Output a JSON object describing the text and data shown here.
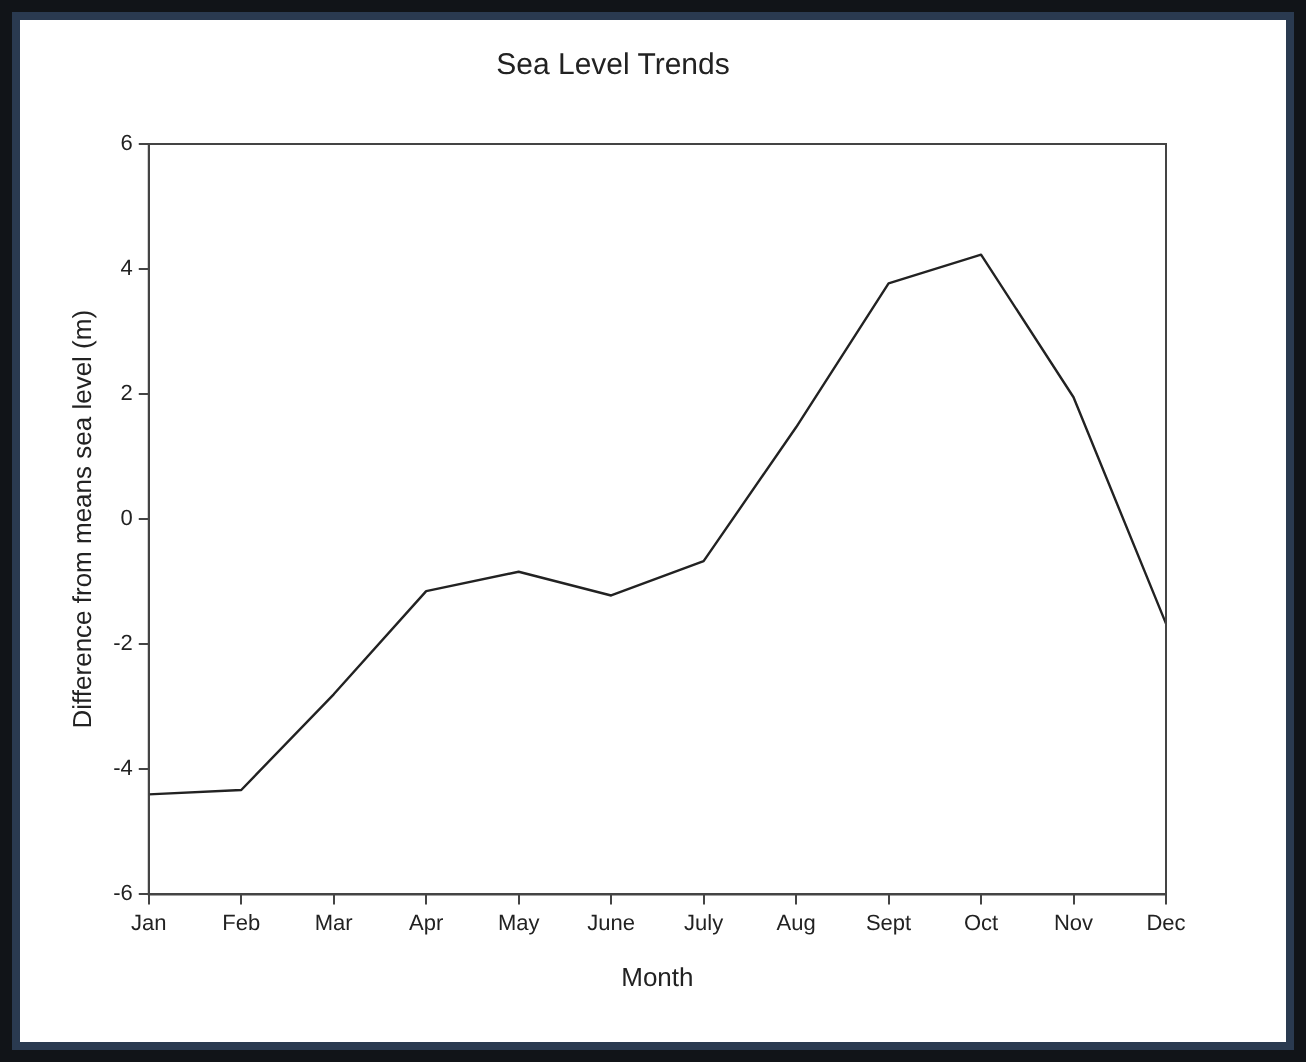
{
  "chart_data": {
    "type": "line",
    "title": "Sea Level Trends",
    "xlabel": "Month",
    "ylabel": "Difference from means sea level (m)",
    "categories": [
      "Jan",
      "Feb",
      "Mar",
      "Apr",
      "May",
      "June",
      "July",
      "Aug",
      "Sept",
      "Oct",
      "Nov",
      "Dec"
    ],
    "series": [
      {
        "color": "#222222",
        "values": [
          -4.4,
          -4.33,
          -2.8,
          -1.15,
          -0.84,
          -1.22,
          -0.67,
          1.47,
          3.77,
          4.23,
          1.95,
          -1.67
        ]
      }
    ],
    "ylim": [
      -6,
      6
    ],
    "yticks": [
      -6,
      -4,
      -2,
      0,
      2,
      4,
      6
    ],
    "grid": false,
    "legend": false,
    "marker": "none",
    "line_style": "solid"
  }
}
